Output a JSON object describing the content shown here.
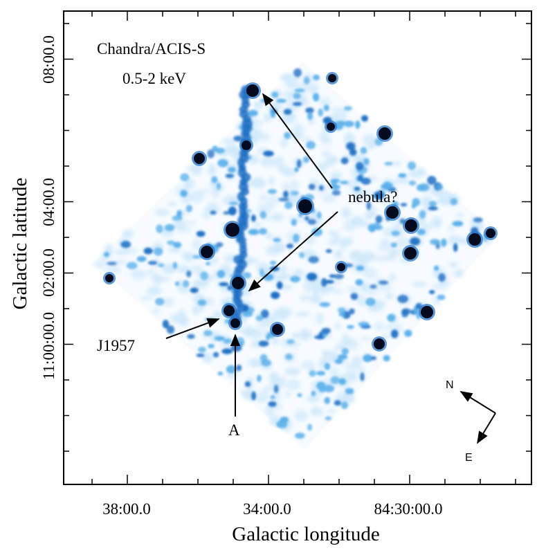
{
  "figure": {
    "instrument_label": "Chandra/ACIS-S",
    "band_label": "0.5-2 keV"
  },
  "axes": {
    "xlabel": "Galactic longitude",
    "ylabel": "Galactic latitude",
    "xticks": [
      "38:00.0",
      "34:00.0",
      "84:30:00.0"
    ],
    "yticks": [
      "08:00.0",
      "04:00.0",
      "02:00.0",
      "11:00:00.0"
    ]
  },
  "annotations": {
    "nebula_label": "nebula?",
    "source_label": "J1957",
    "point_label": "A"
  },
  "compass": {
    "north_label": "N",
    "east_label": "E"
  },
  "colors": {
    "frame": "#000000",
    "emission_faint": "#cfe8fb",
    "emission_mid": "#5ab0ea",
    "emission_strong": "#1e6fc4",
    "point_source": "#050b1e"
  }
}
